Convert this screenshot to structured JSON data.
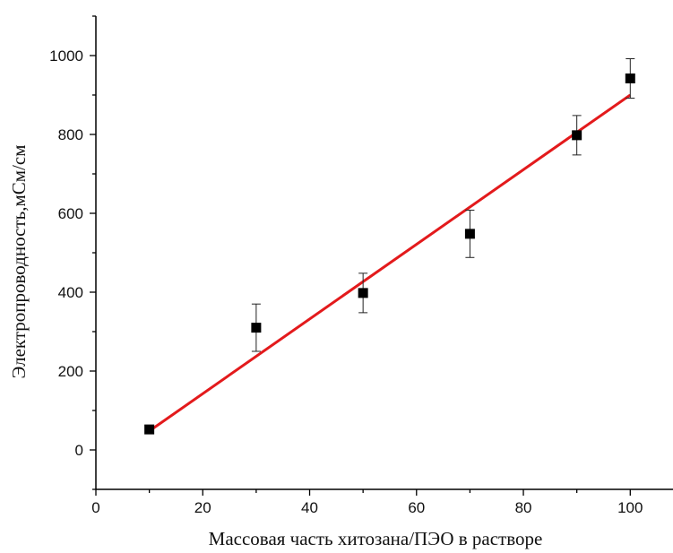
{
  "chart_data": {
    "type": "scatter",
    "xlabel": "Массовая часть хитозана/ПЭО в растворе",
    "ylabel": "Электропроводность,мСм/см",
    "xlim": [
      0,
      108
    ],
    "ylim": [
      -100,
      1100
    ],
    "x_ticks": [
      0,
      20,
      40,
      60,
      80,
      100
    ],
    "y_ticks": [
      0,
      200,
      400,
      600,
      800,
      1000
    ],
    "grid": false,
    "series": [
      {
        "marker": "square",
        "color": "#000000",
        "points": [
          {
            "x": 10,
            "y": 52,
            "err": 0
          },
          {
            "x": 30,
            "y": 310,
            "err": 60
          },
          {
            "x": 50,
            "y": 398,
            "err": 50
          },
          {
            "x": 70,
            "y": 548,
            "err": 60
          },
          {
            "x": 90,
            "y": 798,
            "err": 50
          },
          {
            "x": 100,
            "y": 942,
            "err": 50
          }
        ]
      }
    ],
    "fit_line": {
      "color": "#e31a1c",
      "x": [
        10,
        100
      ],
      "y": [
        48,
        900
      ]
    }
  }
}
